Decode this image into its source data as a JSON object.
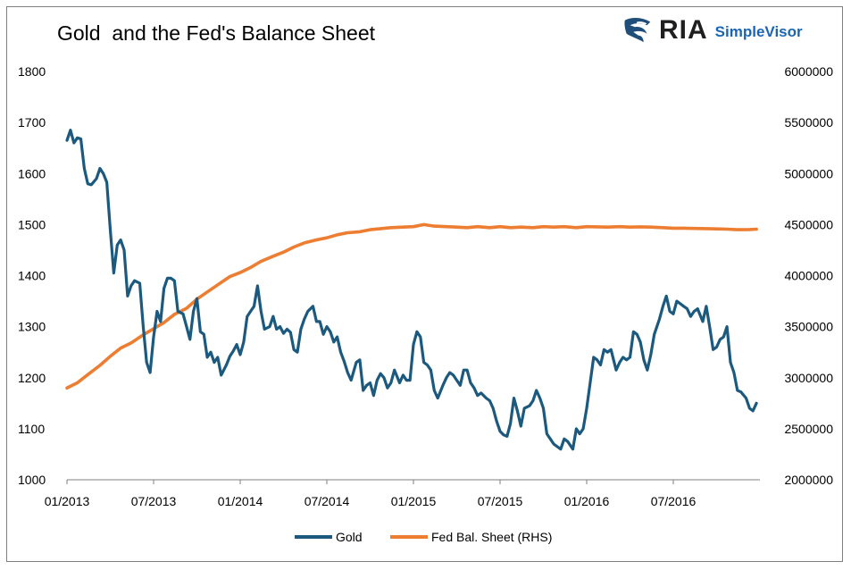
{
  "title": "Gold  and the Fed's Balance Sheet",
  "logo": {
    "brand": "RIA",
    "product": "SimpleVisor",
    "icon": "eagle-icon"
  },
  "colors": {
    "gold": "#1b5a7e",
    "fed": "#ed7d31",
    "axis": "#7f7f7f"
  },
  "chart_data": {
    "type": "line",
    "title": "Gold  and the Fed's Balance Sheet",
    "x_ticks": [
      "01/2013",
      "07/2013",
      "01/2014",
      "07/2014",
      "01/2015",
      "07/2015",
      "01/2016",
      "07/2016"
    ],
    "xlim": [
      "01/2013",
      "01/2017"
    ],
    "ylim_left": [
      1000,
      1800
    ],
    "yticks_left": [
      "1800",
      "1700",
      "1600",
      "1500",
      "1400",
      "1300",
      "1200",
      "1100",
      "1000"
    ],
    "ylim_right": [
      2000000,
      6000000
    ],
    "yticks_right": [
      "6000000",
      "5500000",
      "5000000",
      "4500000",
      "4000000",
      "3500000",
      "3000000",
      "2500000",
      "2000000"
    ],
    "grid": false,
    "legend_position": "bottom",
    "series": [
      {
        "name": "Gold",
        "axis": "left",
        "x": [
          2013.0,
          2013.02,
          2013.04,
          2013.06,
          2013.08,
          2013.1,
          2013.12,
          2013.14,
          2013.17,
          2013.19,
          2013.21,
          2013.23,
          2013.25,
          2013.27,
          2013.29,
          2013.31,
          2013.33,
          2013.35,
          2013.37,
          2013.39,
          2013.42,
          2013.44,
          2013.46,
          2013.48,
          2013.5,
          2013.52,
          2013.54,
          2013.56,
          2013.58,
          2013.6,
          2013.62,
          2013.64,
          2013.67,
          2013.69,
          2013.71,
          2013.73,
          2013.75,
          2013.77,
          2013.79,
          2013.81,
          2013.83,
          2013.85,
          2013.87,
          2013.89,
          2013.92,
          2013.94,
          2013.96,
          2013.98,
          2014.0,
          2014.02,
          2014.04,
          2014.06,
          2014.08,
          2014.1,
          2014.12,
          2014.14,
          2014.17,
          2014.19,
          2014.21,
          2014.23,
          2014.25,
          2014.27,
          2014.29,
          2014.31,
          2014.33,
          2014.35,
          2014.37,
          2014.39,
          2014.42,
          2014.44,
          2014.46,
          2014.48,
          2014.5,
          2014.52,
          2014.54,
          2014.56,
          2014.58,
          2014.6,
          2014.62,
          2014.64,
          2014.67,
          2014.69,
          2014.71,
          2014.73,
          2014.75,
          2014.77,
          2014.79,
          2014.81,
          2014.83,
          2014.85,
          2014.87,
          2014.89,
          2014.92,
          2014.94,
          2014.96,
          2014.98,
          2015.0,
          2015.02,
          2015.04,
          2015.06,
          2015.08,
          2015.1,
          2015.12,
          2015.14,
          2015.17,
          2015.19,
          2015.21,
          2015.23,
          2015.25,
          2015.27,
          2015.29,
          2015.31,
          2015.33,
          2015.35,
          2015.37,
          2015.39,
          2015.42,
          2015.44,
          2015.46,
          2015.48,
          2015.5,
          2015.52,
          2015.54,
          2015.56,
          2015.58,
          2015.6,
          2015.62,
          2015.64,
          2015.67,
          2015.69,
          2015.71,
          2015.73,
          2015.75,
          2015.77,
          2015.79,
          2015.81,
          2015.83,
          2015.85,
          2015.87,
          2015.89,
          2015.92,
          2015.94,
          2015.96,
          2015.98,
          2016.0,
          2016.02,
          2016.04,
          2016.06,
          2016.08,
          2016.1,
          2016.12,
          2016.14,
          2016.17,
          2016.19,
          2016.21,
          2016.23,
          2016.25,
          2016.27,
          2016.29,
          2016.31,
          2016.33,
          2016.35,
          2016.37,
          2016.39,
          2016.42,
          2016.44,
          2016.46,
          2016.48,
          2016.5,
          2016.52,
          2016.54,
          2016.56,
          2016.58,
          2016.6,
          2016.62,
          2016.64,
          2016.67,
          2016.69,
          2016.71,
          2016.73,
          2016.75,
          2016.77,
          2016.79,
          2016.81,
          2016.83,
          2016.85,
          2016.87,
          2016.89,
          2016.92,
          2016.94,
          2016.96,
          2016.98
        ],
        "values": [
          1665,
          1685,
          1660,
          1670,
          1668,
          1610,
          1580,
          1578,
          1590,
          1610,
          1600,
          1583,
          1490,
          1405,
          1460,
          1470,
          1450,
          1360,
          1380,
          1390,
          1385,
          1300,
          1230,
          1210,
          1280,
          1330,
          1310,
          1375,
          1395,
          1395,
          1390,
          1330,
          1325,
          1300,
          1275,
          1330,
          1355,
          1290,
          1285,
          1240,
          1250,
          1230,
          1240,
          1205,
          1225,
          1242,
          1252,
          1265,
          1245,
          1270,
          1320,
          1330,
          1340,
          1380,
          1330,
          1295,
          1300,
          1320,
          1295,
          1300,
          1287,
          1295,
          1289,
          1255,
          1250,
          1295,
          1315,
          1330,
          1340,
          1310,
          1310,
          1285,
          1300,
          1290,
          1270,
          1280,
          1250,
          1232,
          1210,
          1195,
          1230,
          1235,
          1175,
          1185,
          1190,
          1165,
          1195,
          1208,
          1200,
          1180,
          1190,
          1215,
          1190,
          1205,
          1195,
          1195,
          1265,
          1290,
          1280,
          1230,
          1225,
          1215,
          1175,
          1160,
          1185,
          1200,
          1210,
          1205,
          1195,
          1185,
          1215,
          1215,
          1190,
          1180,
          1165,
          1170,
          1160,
          1155,
          1140,
          1115,
          1095,
          1088,
          1085,
          1110,
          1160,
          1135,
          1105,
          1140,
          1145,
          1155,
          1175,
          1160,
          1140,
          1090,
          1080,
          1070,
          1065,
          1060,
          1080,
          1075,
          1060,
          1100,
          1090,
          1100,
          1140,
          1190,
          1240,
          1235,
          1225,
          1255,
          1250,
          1255,
          1215,
          1230,
          1240,
          1235,
          1240,
          1290,
          1285,
          1270,
          1235,
          1215,
          1245,
          1285,
          1315,
          1340,
          1360,
          1330,
          1325,
          1350,
          1345,
          1340,
          1335,
          1320,
          1330,
          1335,
          1310,
          1340,
          1300,
          1255,
          1260,
          1275,
          1280,
          1300,
          1230,
          1210,
          1175,
          1172,
          1160,
          1140,
          1135,
          1150
        ]
      },
      {
        "name": "Fed Bal. Sheet (RHS)",
        "axis": "right",
        "x": [
          2013.0,
          2013.06,
          2013.12,
          2013.19,
          2013.25,
          2013.31,
          2013.37,
          2013.44,
          2013.5,
          2013.56,
          2013.62,
          2013.69,
          2013.75,
          2013.81,
          2013.87,
          2013.94,
          2014.0,
          2014.06,
          2014.12,
          2014.19,
          2014.25,
          2014.31,
          2014.37,
          2014.44,
          2014.5,
          2014.56,
          2014.62,
          2014.69,
          2014.75,
          2014.81,
          2014.87,
          2014.94,
          2015.0,
          2015.06,
          2015.12,
          2015.19,
          2015.25,
          2015.31,
          2015.37,
          2015.44,
          2015.5,
          2015.56,
          2015.62,
          2015.69,
          2015.75,
          2015.81,
          2015.87,
          2015.94,
          2016.0,
          2016.06,
          2016.12,
          2016.19,
          2016.25,
          2016.31,
          2016.37,
          2016.44,
          2016.5,
          2016.56,
          2016.62,
          2016.69,
          2016.75,
          2016.81,
          2016.87,
          2016.94,
          2016.98
        ],
        "values": [
          2900000,
          2950000,
          3030000,
          3120000,
          3210000,
          3290000,
          3340000,
          3420000,
          3480000,
          3540000,
          3620000,
          3680000,
          3770000,
          3840000,
          3910000,
          3990000,
          4030000,
          4080000,
          4140000,
          4190000,
          4230000,
          4280000,
          4320000,
          4350000,
          4370000,
          4400000,
          4420000,
          4430000,
          4450000,
          4460000,
          4470000,
          4475000,
          4480000,
          4500000,
          4485000,
          4480000,
          4475000,
          4470000,
          4480000,
          4470000,
          4480000,
          4470000,
          4475000,
          4470000,
          4480000,
          4475000,
          4480000,
          4470000,
          4480000,
          4478000,
          4475000,
          4480000,
          4475000,
          4478000,
          4475000,
          4470000,
          4465000,
          4465000,
          4462000,
          4460000,
          4458000,
          4455000,
          4450000,
          4452000,
          4455000
        ]
      }
    ]
  }
}
